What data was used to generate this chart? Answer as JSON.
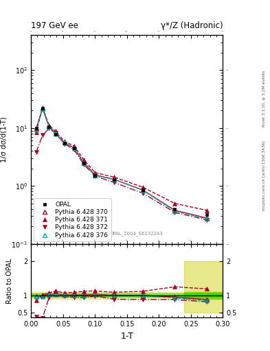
{
  "title_left": "197 GeV ee",
  "title_right": "γ*/Z (Hadronic)",
  "ylabel_main": "1/σ dσ/d(1-T)",
  "ylabel_ratio": "Ratio to OPAL",
  "xlabel": "1-T",
  "right_label_top": "Rivet 3.1.10, ≥ 3.2M events",
  "right_label_bot": "mcplots.cern.ch [arXiv:1306.3436]",
  "watermark": "OPAL_2004_S6132243",
  "x_opal": [
    0.008,
    0.018,
    0.028,
    0.038,
    0.052,
    0.067,
    0.083,
    0.1,
    0.13,
    0.175,
    0.225,
    0.275
  ],
  "y_opal": [
    10.0,
    22.0,
    10.5,
    7.8,
    5.5,
    4.5,
    2.5,
    1.5,
    1.3,
    0.85,
    0.4,
    0.32
  ],
  "y_py370": [
    9.8,
    21.8,
    10.8,
    8.1,
    5.6,
    4.55,
    2.52,
    1.55,
    1.3,
    0.85,
    0.38,
    0.28
  ],
  "y_py371": [
    8.5,
    22.5,
    11.2,
    8.8,
    5.9,
    4.9,
    2.8,
    1.7,
    1.42,
    0.95,
    0.5,
    0.38
  ],
  "y_py372": [
    3.8,
    7.5,
    9.8,
    8.2,
    5.35,
    4.25,
    2.32,
    1.48,
    1.15,
    0.75,
    0.35,
    0.26
  ],
  "y_py376": [
    9.5,
    21.2,
    10.6,
    8.0,
    5.55,
    4.5,
    2.45,
    1.52,
    1.29,
    0.84,
    0.37,
    0.27
  ],
  "ratio_py370": [
    0.98,
    0.99,
    1.03,
    1.04,
    1.02,
    1.01,
    1.01,
    1.03,
    1.0,
    1.0,
    0.95,
    0.875
  ],
  "ratio_py371": [
    0.85,
    1.02,
    1.07,
    1.13,
    1.07,
    1.09,
    1.12,
    1.13,
    1.09,
    1.12,
    1.25,
    1.19
  ],
  "ratio_py372": [
    0.38,
    0.34,
    0.93,
    1.05,
    0.97,
    0.94,
    0.93,
    0.987,
    0.885,
    0.882,
    0.875,
    0.813
  ],
  "ratio_py376": [
    0.95,
    0.965,
    1.01,
    1.026,
    1.009,
    1.0,
    0.98,
    1.013,
    0.992,
    0.988,
    0.925,
    0.844
  ],
  "color_opal": "#000000",
  "color_py370": "#aa0022",
  "color_py371": "#aa0022",
  "color_py372": "#aa0022",
  "color_py376": "#00aaaa",
  "bg_color": "#ffffff",
  "band_green": "#00cc00",
  "band_yellow": "#cccc00",
  "ylim_main": [
    0.1,
    400
  ],
  "ylim_ratio": [
    0.35,
    2.5
  ],
  "xlim": [
    0.0,
    0.3
  ],
  "yticks_ratio": [
    0.5,
    1.0,
    2.0
  ],
  "ytick_labels_ratio": [
    "0.5",
    "1",
    "2"
  ]
}
